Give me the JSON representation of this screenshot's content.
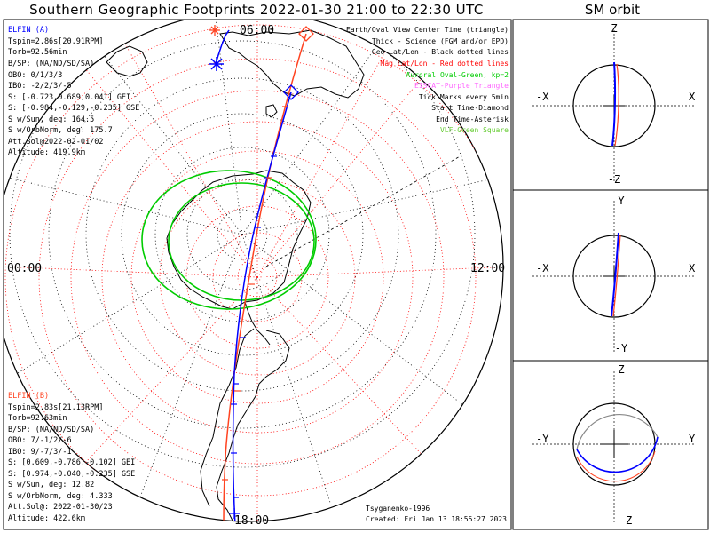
{
  "title": "Southern Geographic Footprints 2022-01-30 21:00 to 22:30 UTC",
  "sm_title": "SM orbit",
  "elfin_a": {
    "header": "ELFIN (A)",
    "lines": [
      "Tspin=2.86s[20.91RPM]",
      "Torb=92.56min",
      "B/SP: (NA/ND/SD/SA)",
      "OBO: 0/1/3/3",
      "IBO: -2/2/3/-5",
      "S: [-0.723,0.689,0.041] GEI",
      "S: [-0.984,-0.129,-0.235] GSE",
      "S w/Sun, deg: 164.5",
      "S w/OrbNorm, deg: 175.7",
      "Att.Sol@2022-02-01/02",
      "Altitude: 419.9km"
    ]
  },
  "elfin_b": {
    "header": "ELFIN (B)",
    "lines": [
      "Tspin=2.83s[21.13RPM]",
      "Torb=92.63min",
      "B/SP: (NA/ND/SD/SA)",
      "OBO: 7/-1/2/-6",
      "IBO: 9/-7/3/-1",
      "S: [0.609,-0.786,-0.102] GEI",
      "S: [0.974,-0.040,-0.235] GSE",
      "S w/Sun, deg: 12.82",
      "S w/OrbNorm, deg: 4.333",
      "Att.Sol@: 2022-01-30/23",
      "Altitude: 422.6km"
    ]
  },
  "legend": [
    {
      "text": "Earth/Oval View Center Time (triangle)",
      "color": "#000000"
    },
    {
      "text": "Thick - Science (FGM and/or EPD)",
      "color": "#000000"
    },
    {
      "text": "Geo Lat/Lon - Black dotted lines",
      "color": "#000000"
    },
    {
      "text": "Mag Lat/Lon - Red dotted lines",
      "color": "#ff0000"
    },
    {
      "text": "Auroral Oval-Green, kp=2",
      "color": "#00cc00"
    },
    {
      "text": "EISCAT-Purple Triangle",
      "color": "#ff66ff"
    },
    {
      "text": "Tick Marks every 5min",
      "color": "#000000"
    },
    {
      "text": "Start Time-Diamond",
      "color": "#000000"
    },
    {
      "text": "End Time-Asterisk",
      "color": "#000000"
    },
    {
      "text": "VLF-Green Square",
      "color": "#66cc33"
    }
  ],
  "map_labels": {
    "top": "06:00",
    "left": "00:00",
    "right": "12:00",
    "bottom": "18:00"
  },
  "footer": {
    "model": "Tsyganenko-1996",
    "created": "Created: Fri Jan 13 18:55:27 2023"
  },
  "panels": [
    {
      "name": "xz",
      "top": "Z",
      "bottom": "-Z",
      "left": "-X",
      "right": "X"
    },
    {
      "name": "xy",
      "top": "Y",
      "bottom": "-Y",
      "left": "-X",
      "right": "X"
    },
    {
      "name": "yz",
      "top": "Z",
      "bottom": "-Z",
      "left": "-Y",
      "right": "Y"
    }
  ],
  "colors": {
    "a": "#0000ff",
    "b": "#ff4422",
    "oval": "#00cc00",
    "geo": "#000000",
    "mag": "#ff0000"
  }
}
